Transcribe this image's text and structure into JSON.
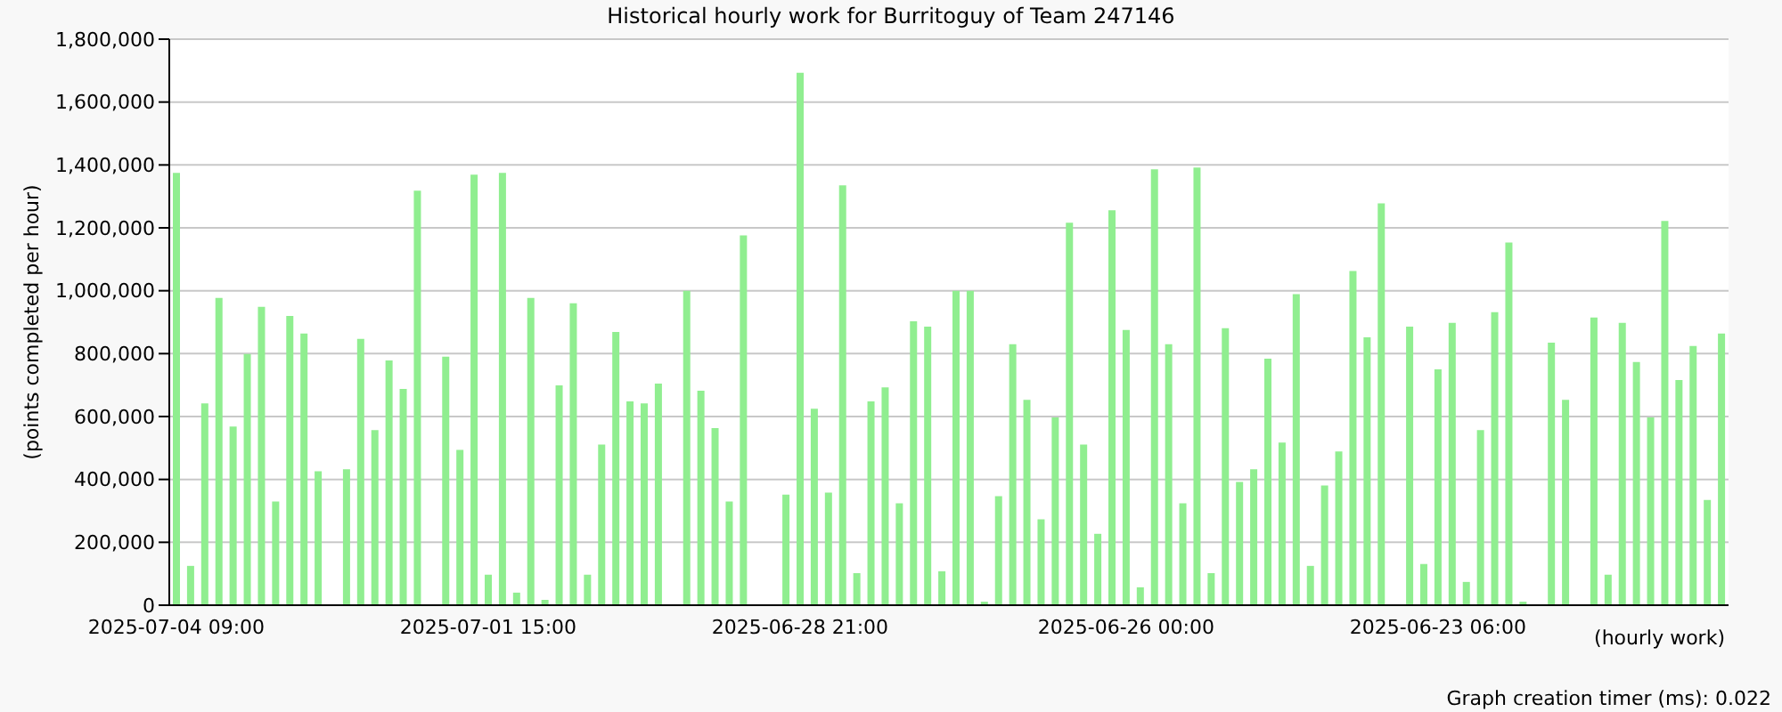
{
  "chart_data": {
    "type": "bar",
    "title": "Historical hourly work for Burritoguy of Team 247146",
    "xlabel": "(hourly work)",
    "ylabel": "(points completed per hour)",
    "annotations": [
      "Graph creation timer (ms): 0.022"
    ],
    "categories": [
      "2025-07-04 09:00",
      null,
      null,
      null,
      null,
      null,
      null,
      null,
      null,
      null,
      null,
      null,
      null,
      null,
      null,
      null,
      null,
      null,
      null,
      null,
      null,
      null,
      "2025-07-01 15:00",
      null,
      null,
      null,
      null,
      null,
      null,
      null,
      null,
      null,
      null,
      null,
      null,
      null,
      null,
      null,
      null,
      null,
      null,
      null,
      null,
      null,
      "2025-06-28 21:00",
      null,
      null,
      null,
      null,
      null,
      null,
      null,
      null,
      null,
      null,
      null,
      null,
      null,
      null,
      null,
      null,
      null,
      null,
      null,
      null,
      null,
      null,
      "2025-06-26 00:00",
      null,
      null,
      null,
      null,
      null,
      null,
      null,
      null,
      null,
      null,
      null,
      null,
      null,
      null,
      null,
      null,
      null,
      null,
      null,
      null,
      null,
      "2025-06-23 06:00",
      null,
      null,
      null,
      null,
      null,
      null,
      null,
      null,
      null,
      null,
      null,
      null,
      null,
      null,
      null,
      null,
      null,
      null,
      null,
      null
    ],
    "values": [
      1375000,
      125000,
      642000,
      977000,
      568000,
      799000,
      949000,
      330000,
      920000,
      864000,
      426000,
      0,
      432000,
      847000,
      557000,
      778000,
      688000,
      1318000,
      0,
      790000,
      494000,
      1369000,
      97000,
      1375000,
      40000,
      977000,
      17000,
      699000,
      960000,
      97000,
      511000,
      869000,
      648000,
      642000,
      705000,
      0,
      1000000,
      682000,
      563000,
      330000,
      1176000,
      0,
      0,
      352000,
      1693000,
      625000,
      358000,
      1335000,
      102000,
      648000,
      693000,
      324000,
      903000,
      886000,
      108000,
      1000000,
      1000000,
      11000,
      347000,
      830000,
      653000,
      273000,
      597000,
      1216000,
      511000,
      227000,
      1256000,
      875000,
      57000,
      1386000,
      830000,
      324000,
      1392000,
      102000,
      881000,
      392000,
      432000,
      784000,
      517000,
      989000,
      125000,
      381000,
      489000,
      1063000,
      852000,
      1278000,
      0,
      886000,
      131000,
      750000,
      898000,
      74000,
      557000,
      932000,
      1153000,
      11000,
      0,
      835000,
      653000,
      0,
      915000,
      97000,
      898000,
      773000,
      597000,
      1222000,
      716000,
      824000,
      335000,
      864000
    ],
    "color": "#90ee90",
    "ylim": [
      0,
      1800000
    ],
    "yticks": [
      {
        "value": 0,
        "label": "0"
      },
      {
        "value": 200000,
        "label": "200,000"
      },
      {
        "value": 400000,
        "label": "400,000"
      },
      {
        "value": 600000,
        "label": "600,000"
      },
      {
        "value": 800000,
        "label": "800,000"
      },
      {
        "value": 1000000,
        "label": "1,000,000"
      },
      {
        "value": 1200000,
        "label": "1,200,000"
      },
      {
        "value": 1400000,
        "label": "1,400,000"
      },
      {
        "value": 1600000,
        "label": "1,600,000"
      },
      {
        "value": 1800000,
        "label": "1,800,000"
      }
    ],
    "grid": "y",
    "legend": false
  }
}
